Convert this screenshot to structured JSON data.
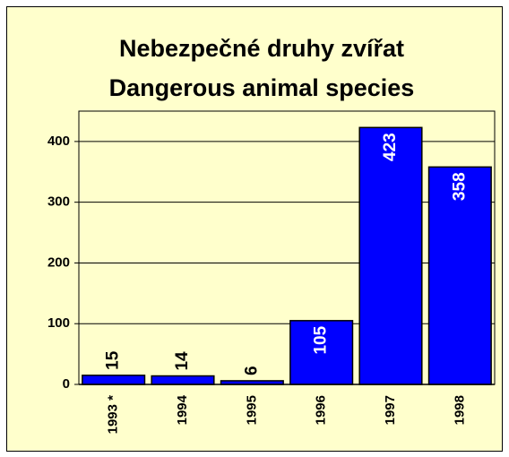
{
  "chart_data": {
    "type": "bar",
    "title": "Nebezpečné druhy zvířat",
    "subtitle": "Dangerous animal species",
    "categories": [
      "1993 *",
      "1994",
      "1995",
      "1996",
      "1997",
      "1998"
    ],
    "values": [
      15,
      14,
      6,
      105,
      423,
      358
    ],
    "color": "#0000ff",
    "ylim": [
      0,
      450
    ],
    "yticks": [
      0,
      100,
      200,
      300,
      400
    ],
    "grid": true
  }
}
